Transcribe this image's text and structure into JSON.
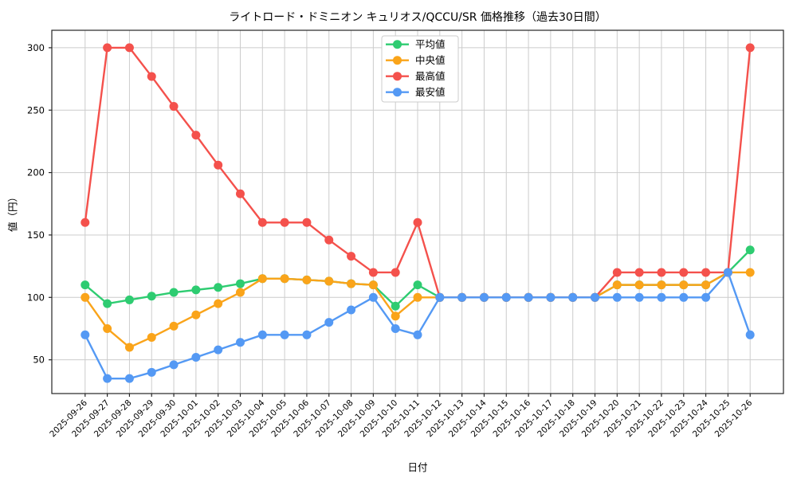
{
  "title": "ライトロード・ドミニオン キュリオス/QCCU/SR 価格推移（過去30日間）",
  "chart_data": {
    "type": "line",
    "title": "ライトロード・ドミニオン キュリオス/QCCU/SR 価格推移（過去30日間）",
    "xlabel": "日付",
    "ylabel": "値（円）",
    "x": [
      "2025-09-26",
      "2025-09-27",
      "2025-09-28",
      "2025-09-29",
      "2025-09-30",
      "2025-10-01",
      "2025-10-02",
      "2025-10-03",
      "2025-10-04",
      "2025-10-05",
      "2025-10-06",
      "2025-10-07",
      "2025-10-08",
      "2025-10-09",
      "2025-10-10",
      "2025-10-11",
      "2025-10-12",
      "2025-10-13",
      "2025-10-14",
      "2025-10-15",
      "2025-10-16",
      "2025-10-17",
      "2025-10-18",
      "2025-10-19",
      "2025-10-20",
      "2025-10-21",
      "2025-10-22",
      "2025-10-23",
      "2025-10-24",
      "2025-10-25",
      "2025-10-26"
    ],
    "series": [
      {
        "name": "平均値",
        "key": "average",
        "color": "#2ecc71",
        "values": [
          110,
          95,
          98,
          101,
          104,
          106,
          108,
          111,
          115,
          115,
          114,
          113,
          111,
          110,
          93,
          110,
          100,
          100,
          100,
          100,
          100,
          100,
          100,
          100,
          110,
          110,
          110,
          110,
          110,
          120,
          138
        ]
      },
      {
        "name": "中央値",
        "key": "median",
        "color": "#faa41a",
        "values": [
          100,
          75,
          60,
          68,
          77,
          86,
          95,
          104,
          115,
          115,
          114,
          113,
          111,
          110,
          85,
          100,
          100,
          100,
          100,
          100,
          100,
          100,
          100,
          100,
          110,
          110,
          110,
          110,
          110,
          120,
          120
        ]
      },
      {
        "name": "最高値",
        "key": "highest",
        "color": "#f4514c",
        "values": [
          160,
          300,
          300,
          277,
          253,
          230,
          206,
          183,
          160,
          160,
          160,
          146,
          133,
          120,
          120,
          160,
          100,
          100,
          100,
          100,
          100,
          100,
          100,
          100,
          120,
          120,
          120,
          120,
          120,
          120,
          300
        ]
      },
      {
        "name": "最安値",
        "key": "lowest",
        "color": "#5499f4",
        "values": [
          70,
          35,
          35,
          40,
          46,
          52,
          58,
          64,
          70,
          70,
          70,
          80,
          90,
          100,
          75,
          70,
          100,
          100,
          100,
          100,
          100,
          100,
          100,
          100,
          100,
          100,
          100,
          100,
          100,
          120,
          70
        ]
      }
    ],
    "yticks": [
      50,
      100,
      150,
      200,
      250,
      300
    ],
    "ylim": [
      23,
      314
    ],
    "grid": true,
    "legend_position": "upper center",
    "colors": {
      "grid": "#cccccc",
      "spine": "#262626",
      "background": "#ffffff",
      "legend_border": "#cccccc"
    }
  }
}
